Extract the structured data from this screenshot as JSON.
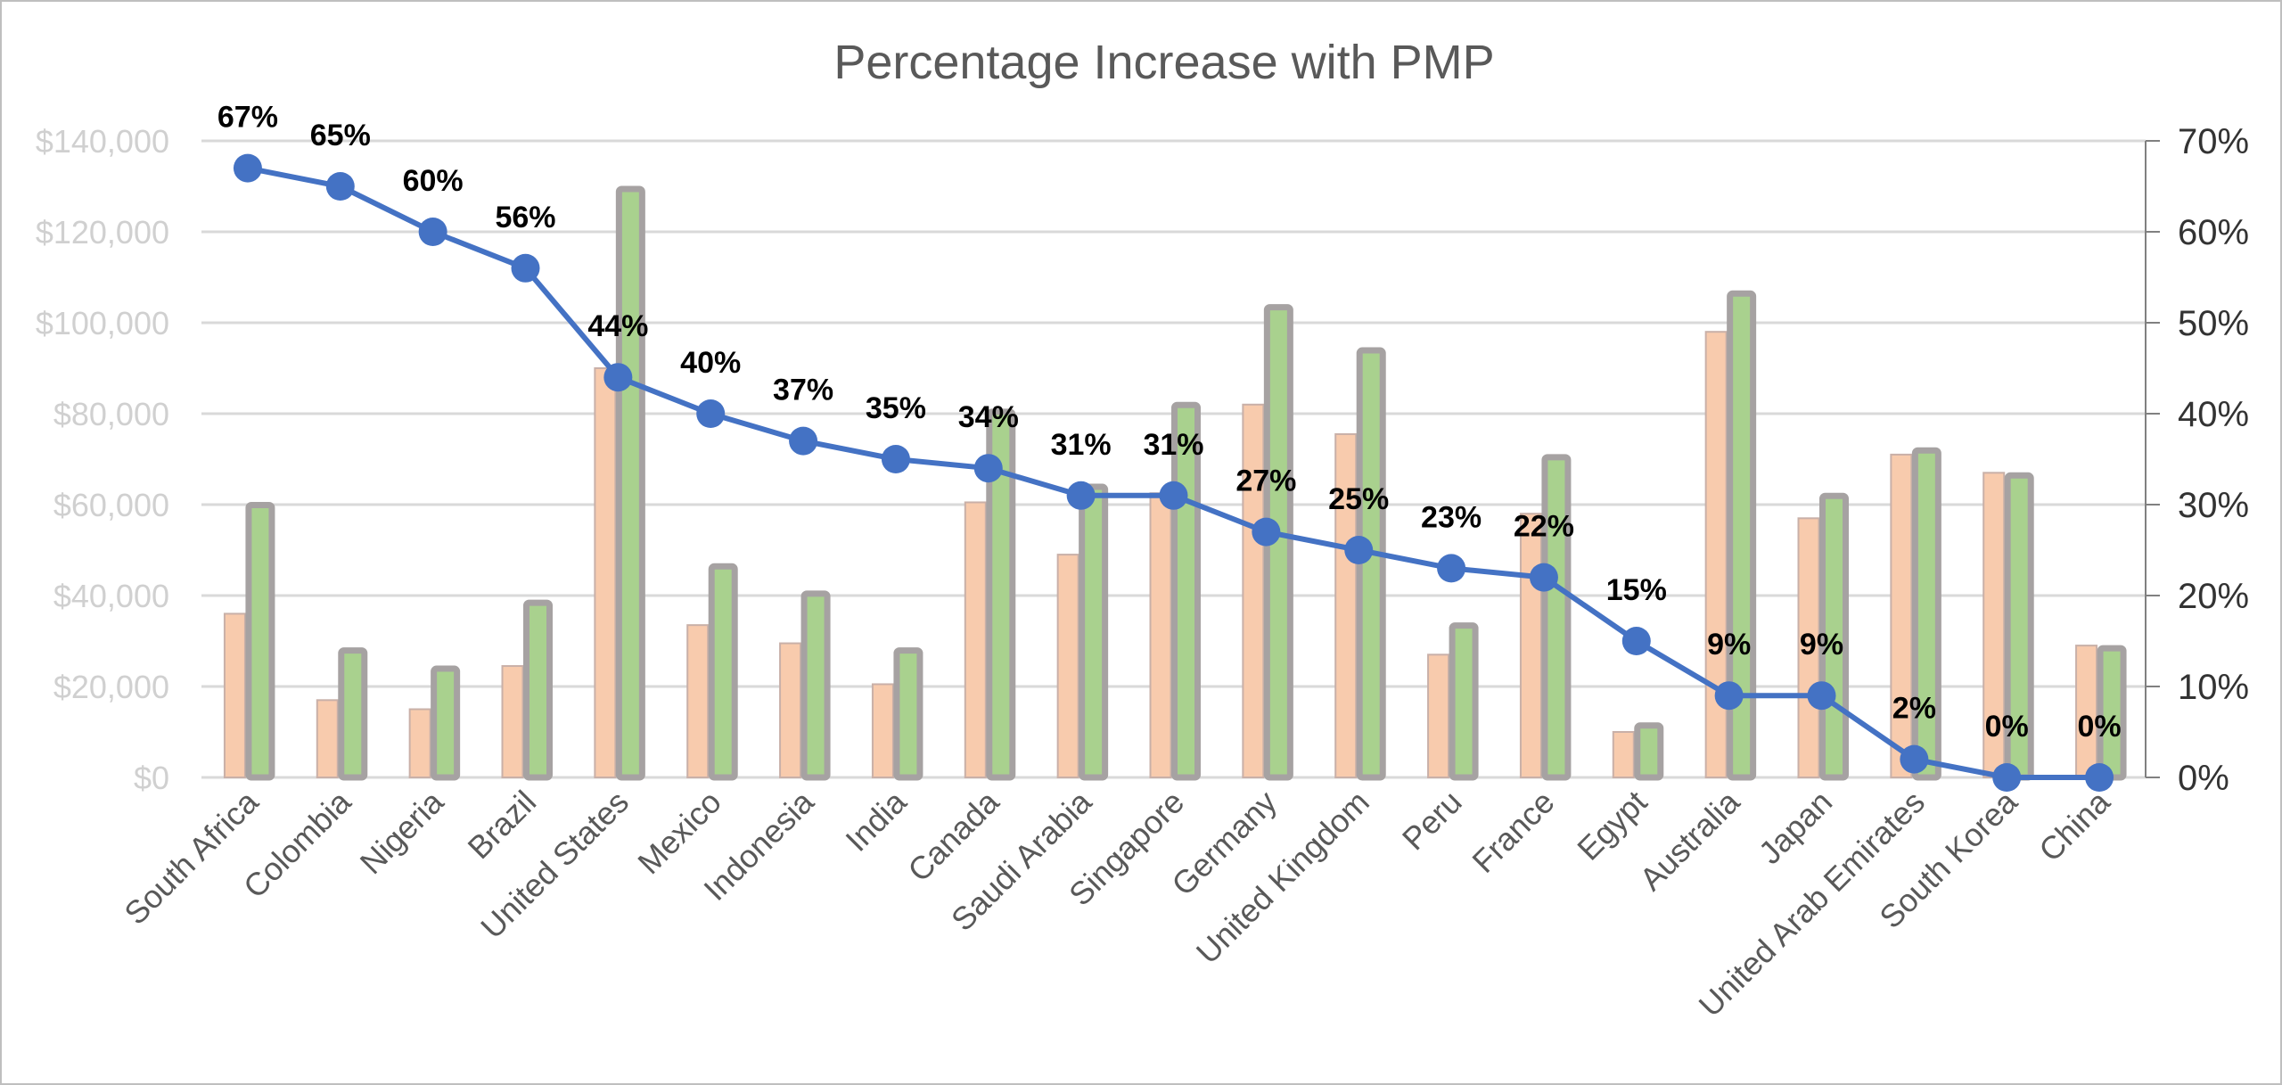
{
  "chart_data": {
    "type": "bar+line",
    "title": "Percentage Increase with PMP",
    "categories": [
      "South Africa",
      "Colombia",
      "Nigeria",
      "Brazil",
      "United States",
      "Mexico",
      "Indonesia",
      "India",
      "Canada",
      "Saudi Arabia",
      "Singapore",
      "Germany",
      "United Kingdom",
      "Peru",
      "France",
      "Egypt",
      "Australia",
      "Japan",
      "United Arab Emirates",
      "South Korea",
      "China"
    ],
    "series": [
      {
        "type": "bar",
        "axis": "left",
        "values": [
          36000,
          17000,
          15000,
          24500,
          90000,
          33500,
          29500,
          20500,
          60500,
          49000,
          62500,
          82000,
          75500,
          27000,
          58000,
          10000,
          98000,
          57000,
          71000,
          67000,
          29000
        ]
      },
      {
        "type": "bar",
        "axis": "left",
        "values": [
          60500,
          28500,
          24500,
          39000,
          130000,
          47000,
          41000,
          28500,
          81000,
          64500,
          82500,
          104000,
          94500,
          34000,
          71000,
          12000,
          107000,
          62500,
          72500,
          67000,
          29000
        ]
      },
      {
        "type": "line",
        "axis": "right",
        "values": [
          67,
          65,
          60,
          56,
          44,
          40,
          37,
          35,
          34,
          31,
          31,
          27,
          25,
          23,
          22,
          15,
          9,
          9,
          2,
          0,
          0
        ],
        "labels": [
          "67%",
          "65%",
          "60%",
          "56%",
          "44%",
          "40%",
          "37%",
          "35%",
          "34%",
          "31%",
          "31%",
          "27%",
          "25%",
          "23%",
          "22%",
          "15%",
          "9%",
          "9%",
          "2%",
          "0%",
          "0%"
        ]
      }
    ],
    "left_axis": {
      "ylim": [
        0,
        140000
      ],
      "ticks": [
        "$0",
        "$20,000",
        "$40,000",
        "$60,000",
        "$80,000",
        "$100,000",
        "$120,000",
        "$140,000"
      ]
    },
    "right_axis": {
      "ylim": [
        0,
        70
      ],
      "ticks": [
        "0%",
        "10%",
        "20%",
        "30%",
        "40%",
        "50%",
        "60%",
        "70%"
      ]
    },
    "grid": true,
    "legend": "none",
    "colors": {
      "bar1_fill": "#F8CBAD",
      "bar1_border": "#C9B0A8",
      "bar2_fill": "#A9D18E",
      "bar2_border": "#A6A2A2",
      "line": "#4472C4",
      "grid": "#D9D9D9",
      "left_tick_text": "#D0D0D0",
      "right_tick_text": "#333333",
      "xlabel_text": "#595959",
      "title_text": "#595959"
    }
  }
}
